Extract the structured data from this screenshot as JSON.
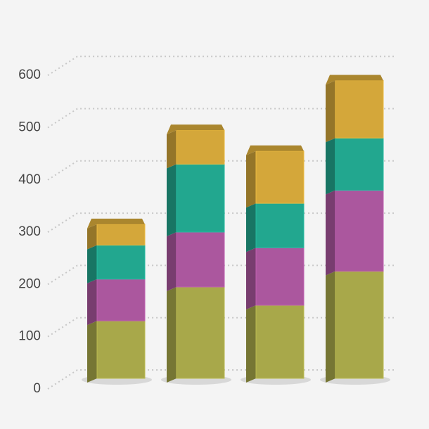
{
  "chart_data": {
    "type": "bar",
    "stacked": true,
    "categories": [
      null,
      null,
      null,
      null
    ],
    "series": [
      {
        "color": "#a8a84a",
        "values": [
          110,
          175,
          140,
          205
        ]
      },
      {
        "color": "#ab579e",
        "values": [
          80,
          105,
          110,
          155
        ]
      },
      {
        "color": "#22a78f",
        "values": [
          65,
          130,
          85,
          100
        ]
      },
      {
        "color": "#d4a73a",
        "values": [
          40,
          65,
          100,
          110
        ]
      }
    ],
    "ylim": [
      0,
      600
    ],
    "yticks": [
      0,
      100,
      200,
      300,
      400,
      500,
      600
    ],
    "grid": true
  }
}
